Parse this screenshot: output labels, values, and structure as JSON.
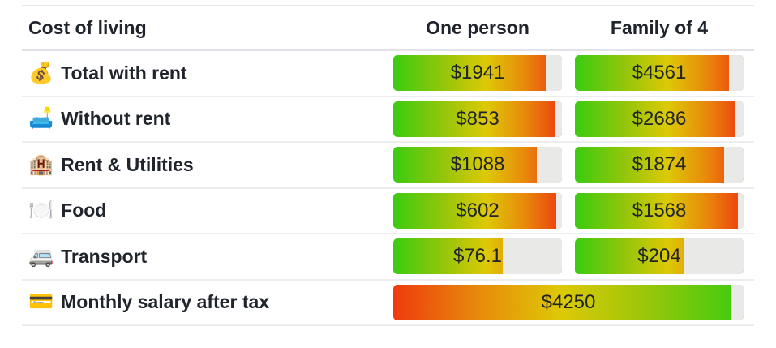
{
  "header": {
    "label_col": "Cost of living",
    "col_one": "One person",
    "col_two": "Family of 4"
  },
  "rows": [
    {
      "icon": "💰",
      "icon_name": "money-bag-icon",
      "label": "Total with rent",
      "one_value": "$1941",
      "one_fill_pct": 90.5,
      "family_value": "$4561",
      "family_fill_pct": 91.5
    },
    {
      "icon": "🛋️",
      "icon_name": "couch-icon",
      "label": "Without rent",
      "one_value": "$853",
      "one_fill_pct": 96,
      "family_value": "$2686",
      "family_fill_pct": 95
    },
    {
      "icon": "🏨",
      "icon_name": "building-icon",
      "label": "Rent & Utilities",
      "one_value": "$1088",
      "one_fill_pct": 85,
      "family_value": "$1874",
      "family_fill_pct": 88.5
    },
    {
      "icon": "🍽️",
      "icon_name": "fork-knife-plate-icon",
      "label": "Food",
      "one_value": "$602",
      "one_fill_pct": 96.5,
      "family_value": "$1568",
      "family_fill_pct": 96.5
    },
    {
      "icon": "🚐",
      "icon_name": "minibus-icon",
      "label": "Transport",
      "one_value": "$76.1",
      "one_fill_pct": 65,
      "family_value": "$204",
      "family_fill_pct": 64.5
    }
  ],
  "salary_row": {
    "icon": "💳",
    "icon_name": "credit-card-icon",
    "label": "Monthly salary after tax",
    "value": "$4250",
    "fill_pct": 96.5
  },
  "colors": {
    "text": "#20242c",
    "track_remainder": "#e9e9e7",
    "gradient_green": "#3bcb10",
    "gradient_yellow": "#ddc906",
    "gradient_red": "#ee3b0e",
    "row_divider": "#ededef",
    "header_divider": "#e2e3e8"
  },
  "chart_data": {
    "type": "bar",
    "title": "Cost of living",
    "categories": [
      "Total with rent",
      "Without rent",
      "Rent & Utilities",
      "Food",
      "Transport"
    ],
    "series": [
      {
        "name": "One person",
        "values": [
          1941,
          853,
          1088,
          602,
          76.1
        ]
      },
      {
        "name": "Family of 4",
        "values": [
          4561,
          2686,
          1874,
          1568,
          204
        ]
      }
    ],
    "extra": {
      "label": "Monthly salary after tax",
      "value": 4250
    },
    "unit": "USD",
    "bar_style": "horizontal gradient green-to-red, gray remainder track, value label centered; salary bar gradient red-to-green spanning both columns"
  }
}
